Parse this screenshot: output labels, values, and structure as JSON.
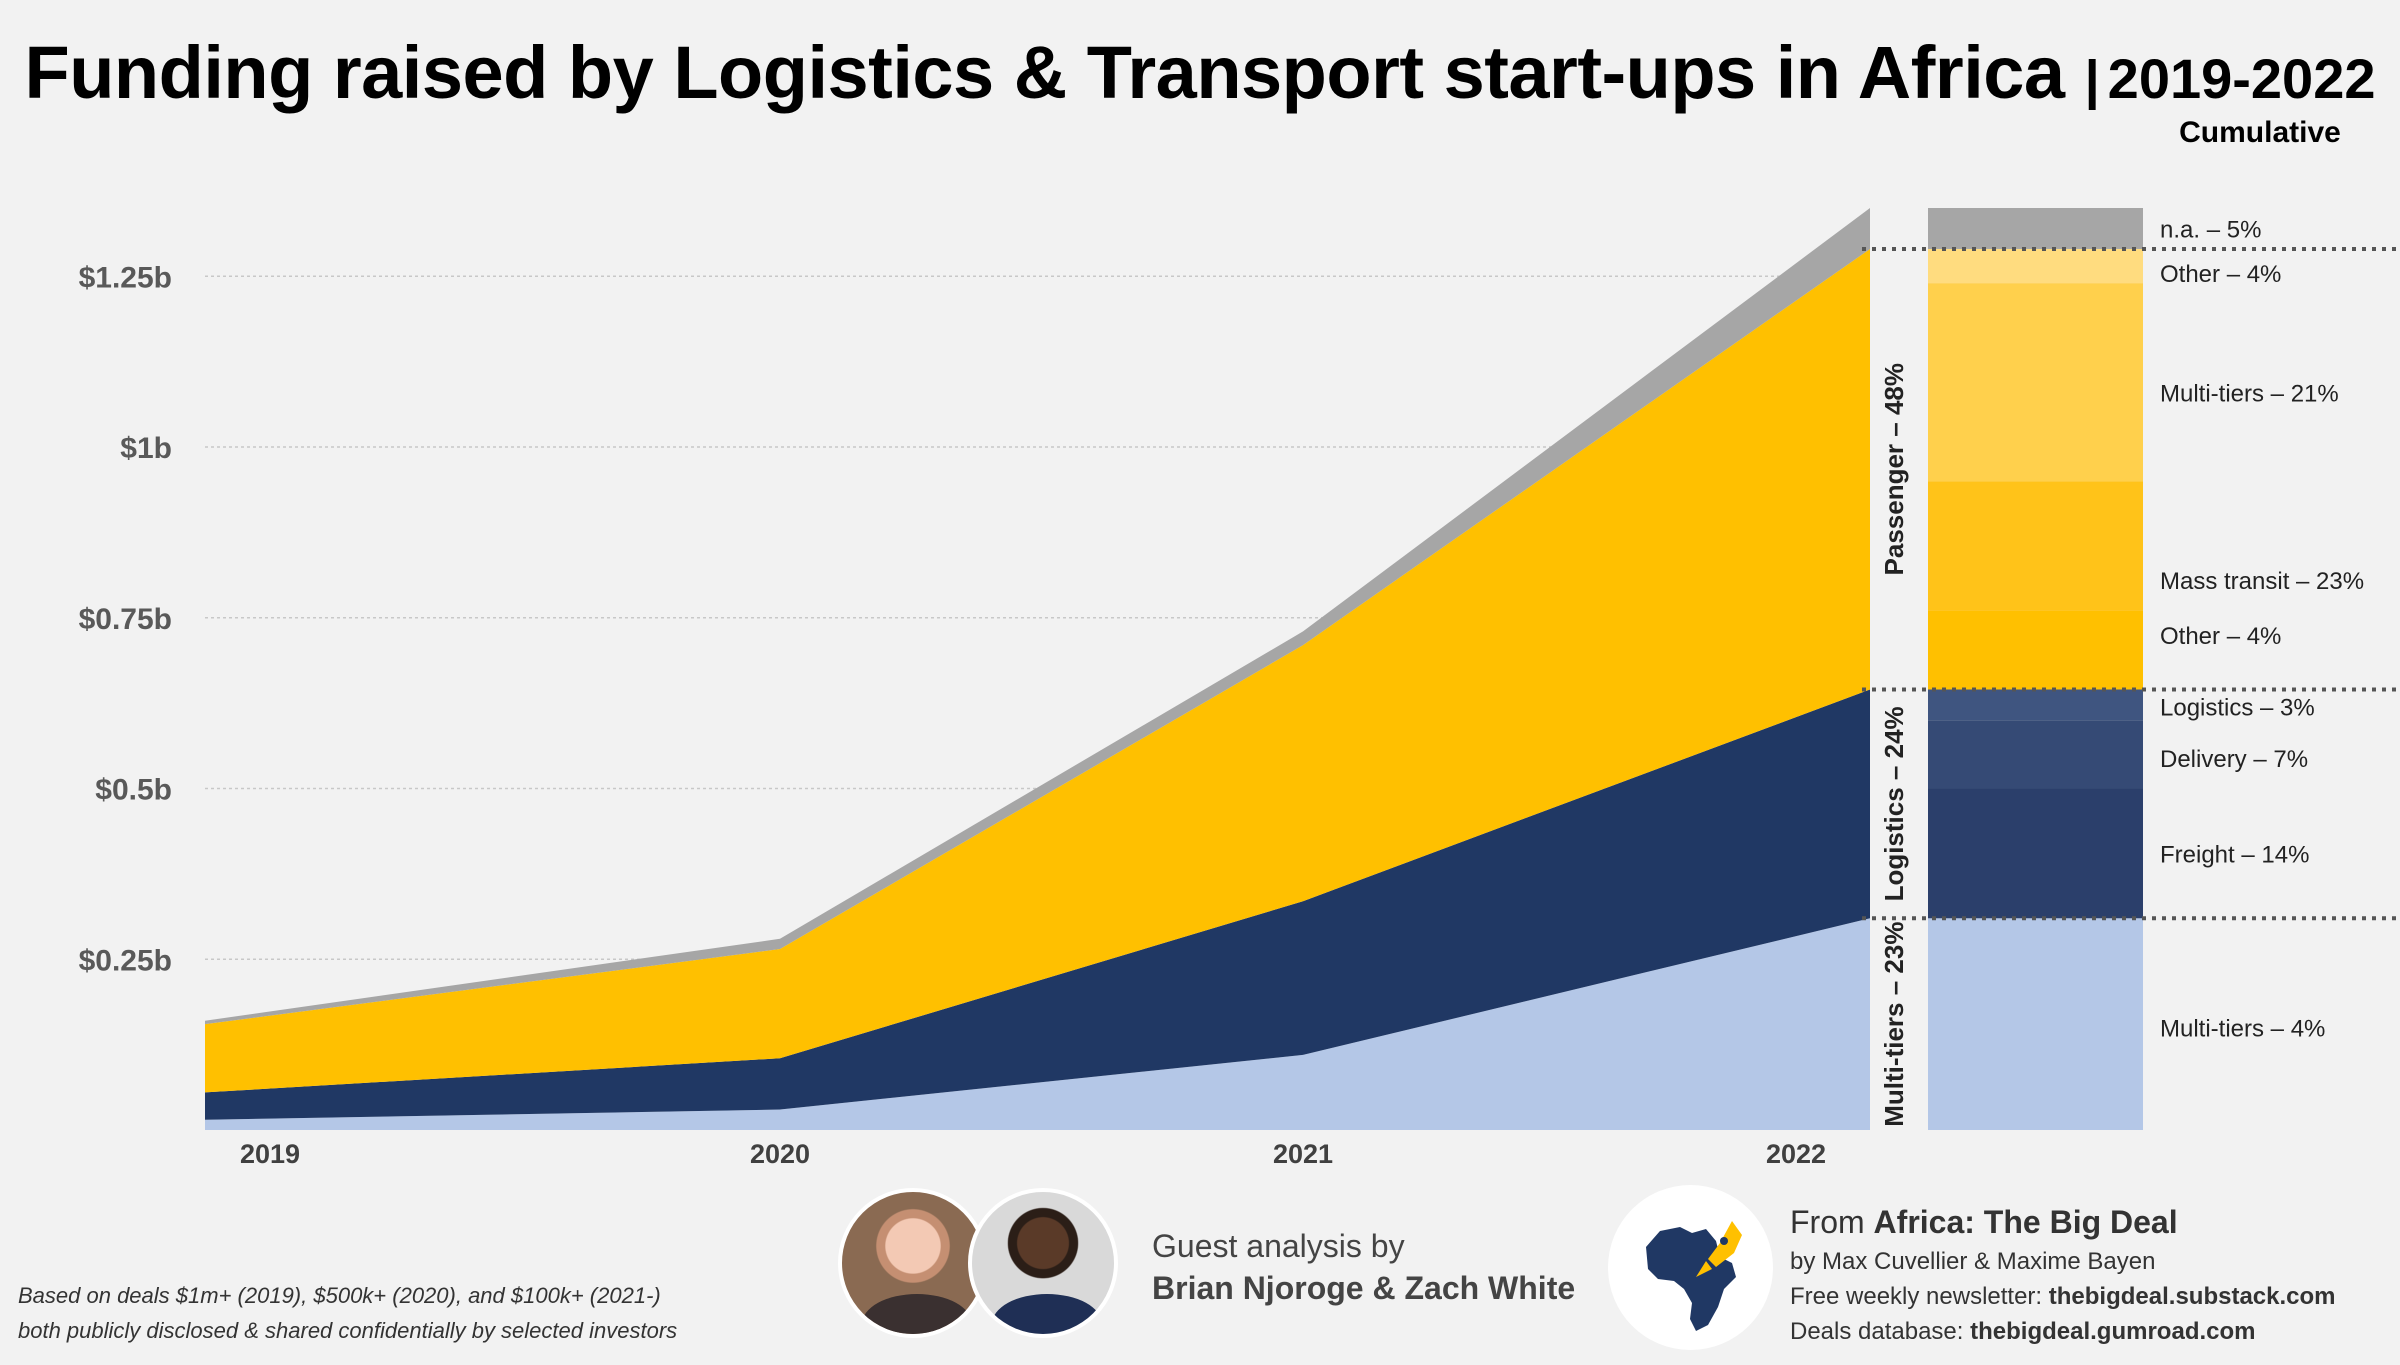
{
  "title": {
    "main": "Funding raised by Logistics & Transport start-ups in Africa",
    "separator": "|",
    "years": "2019-2022"
  },
  "colors": {
    "background": "#f2f2f2",
    "multi_tiers": "#b4c7e7",
    "logistics": "#203864",
    "passenger": "#ffc000",
    "na": "#a6a6a6",
    "grid": "#bfbfbf",
    "axis_text": "#595959"
  },
  "chart_data": {
    "type": "area",
    "stacked": true,
    "x": [
      "2019",
      "2020",
      "2021",
      "2022"
    ],
    "ylim": [
      0,
      1.35
    ],
    "yticks": [
      0.25,
      0.5,
      0.75,
      1.0,
      1.25
    ],
    "ytick_labels": [
      "$0.25b",
      "$0.5b",
      "$0.75b",
      "$1b",
      "$1.25b"
    ],
    "grid": true,
    "xlabel": "",
    "ylabel": "",
    "series": [
      {
        "key": "multi_tiers",
        "values": [
          0.015,
          0.03,
          0.11,
          0.31
        ],
        "color": "#b4c7e7"
      },
      {
        "key": "logistics",
        "values": [
          0.04,
          0.075,
          0.225,
          0.335
        ],
        "color": "#203864"
      },
      {
        "key": "passenger",
        "values": [
          0.1,
          0.16,
          0.375,
          0.645
        ],
        "color": "#ffc000"
      },
      {
        "key": "na",
        "values": [
          0.005,
          0.015,
          0.02,
          0.06
        ],
        "color": "#a6a6a6"
      }
    ],
    "cumulative": {
      "heading": "Cumulative",
      "groups": [
        {
          "label": "Multi-tiers – 23%",
          "range": [
            0,
            0.31
          ]
        },
        {
          "label": "Logistics – 24%",
          "range": [
            0.31,
            0.645
          ]
        },
        {
          "label": "Passenger – 48%",
          "range": [
            0.645,
            1.29
          ]
        }
      ],
      "segments": [
        {
          "label": "Multi-tiers – 4%",
          "range": [
            0,
            0.31
          ],
          "color": "#b4c7e7"
        },
        {
          "label": "Freight – 14%",
          "range": [
            0.31,
            0.5
          ],
          "color": "#2b3f6b"
        },
        {
          "label": "Delivery – 7%",
          "range": [
            0.5,
            0.6
          ],
          "color": "#354a75"
        },
        {
          "label": "Logistics – 3%",
          "range": [
            0.6,
            0.645
          ],
          "color": "#3f5580"
        },
        {
          "label": "Other – 4%",
          "range": [
            0.645,
            0.76
          ],
          "color": "#ffc000"
        },
        {
          "label": "Mass transit – 23%",
          "range": [
            0.76,
            0.95
          ],
          "color": "#ffc319"
        },
        {
          "label": "Multi-tiers – 21%",
          "range": [
            0.95,
            1.24
          ],
          "color": "#ffd04c"
        },
        {
          "label": "Other – 4%",
          "range": [
            1.24,
            1.29
          ],
          "color": "#ffdc7f"
        },
        {
          "label": "n.a. – 5%",
          "range": [
            1.29,
            1.35
          ],
          "color": "#a6a6a6"
        }
      ],
      "segment_label_values": [
        0.15,
        0.405,
        0.545,
        0.62,
        0.725,
        0.805,
        1.08,
        1.255,
        1.32
      ]
    }
  },
  "footnote": {
    "line1": "Based on deals $1m+ (2019), $500k+ (2020), and $100k+ (2021-)",
    "line2": "both publicly disclosed & shared confidentially by selected investors"
  },
  "guest": {
    "line1": "Guest analysis by",
    "names": "Brian Njoroge & Zach White"
  },
  "source": {
    "from_prefix": "From ",
    "from_name": "Africa: The Big Deal",
    "authors": "by Max Cuvellier & Maxime Bayen",
    "newsletter_label": "Free weekly newsletter: ",
    "newsletter_url": "thebigdeal.substack.com",
    "database_label": "Deals database: ",
    "database_url": "thebigdeal.gumroad.com"
  }
}
